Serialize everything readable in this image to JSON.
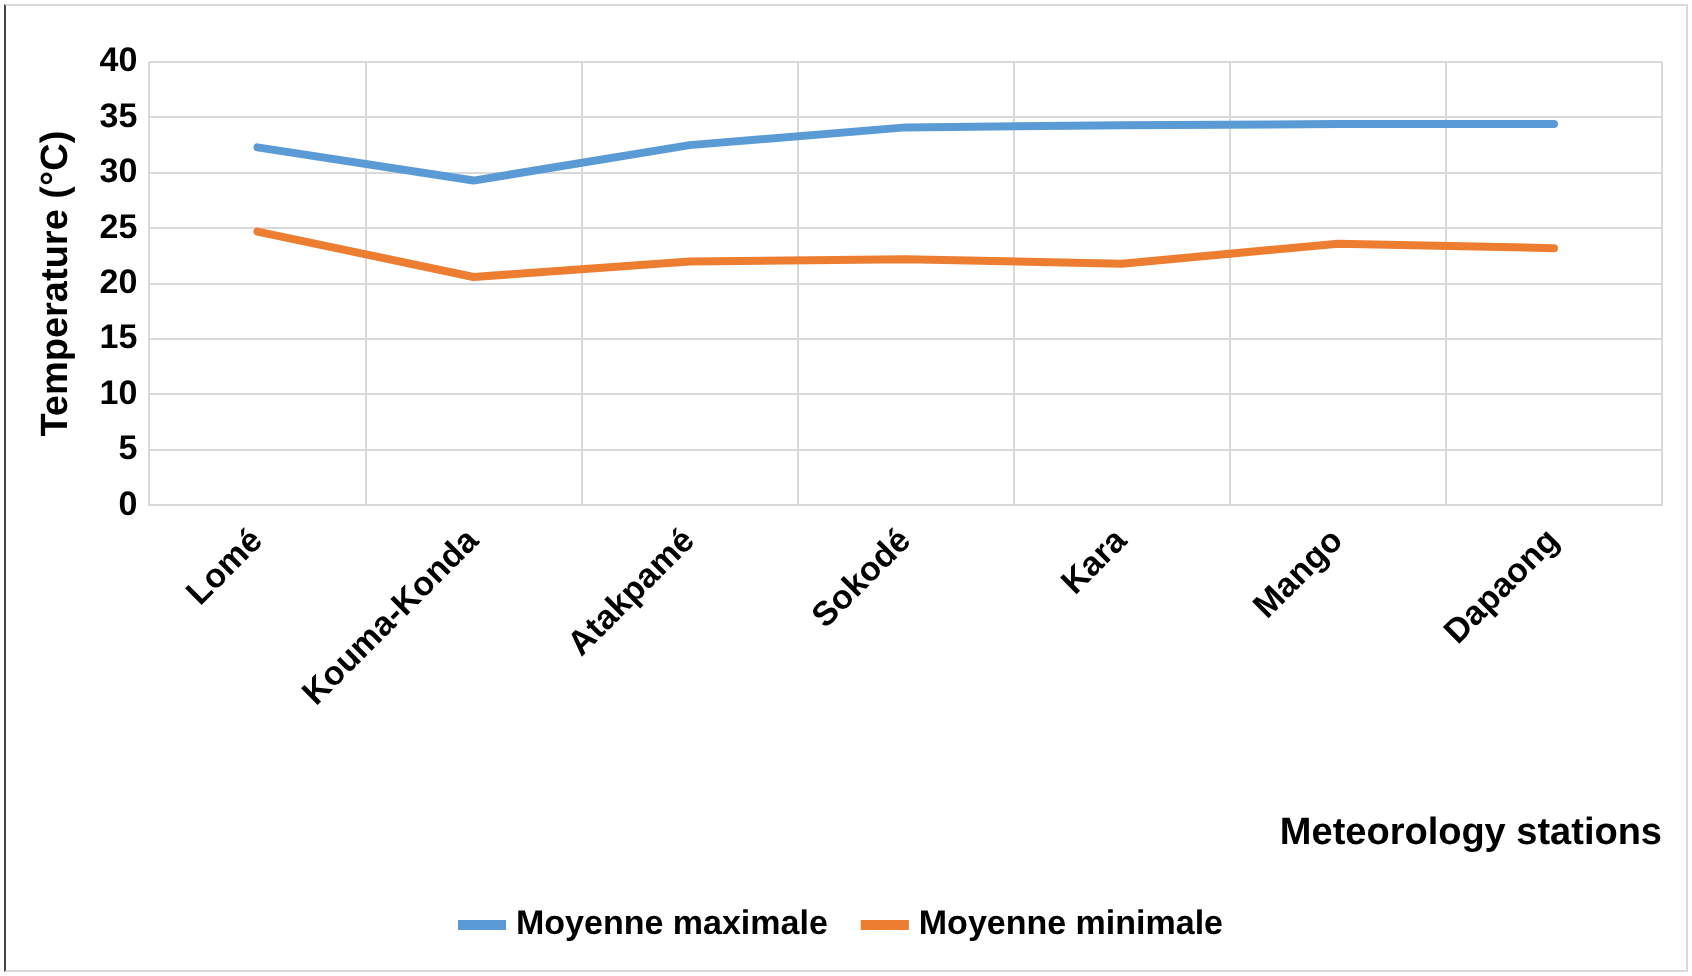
{
  "chart_data": {
    "type": "line",
    "xlabel": "Meteorology stations",
    "ylabel": "Temperature (°C)",
    "categories": [
      "Lomé",
      "Kouma-Konda",
      "Atakpamé",
      "Sokodé",
      "Kara",
      "Mango",
      "Dapaong"
    ],
    "series": [
      {
        "name": "Moyenne maximale",
        "color": "#5b9bd5",
        "values": [
          32.3,
          29.3,
          32.5,
          34.1,
          34.3,
          34.4,
          34.4
        ]
      },
      {
        "name": "Moyenne minimale",
        "color": "#ed7d31",
        "values": [
          24.7,
          20.6,
          22.0,
          22.2,
          21.8,
          23.6,
          23.2
        ]
      }
    ],
    "ylim": [
      0,
      40
    ],
    "yticks": [
      0,
      5,
      10,
      15,
      20,
      25,
      30,
      35,
      40
    ],
    "grid": true,
    "legend": "bottom",
    "marker": "none",
    "line_style": "solid"
  }
}
